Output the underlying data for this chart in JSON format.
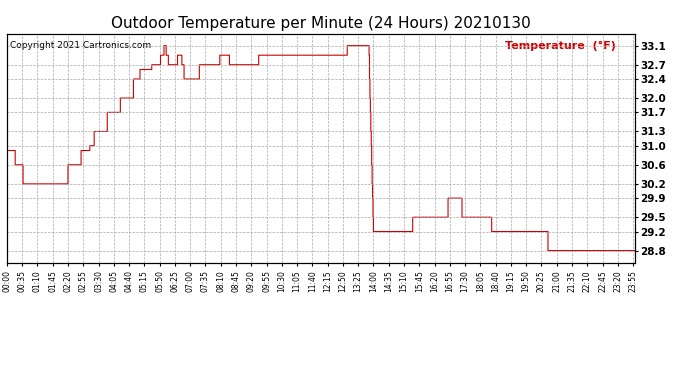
{
  "title": "Outdoor Temperature per Minute (24 Hours) 20210130",
  "copyright_text": "Copyright 2021 Cartronics.com",
  "legend_label": "Temperature  (°F)",
  "line_color": "#cc0000",
  "background_color": "#ffffff",
  "grid_color": "#aaaaaa",
  "title_fontsize": 11,
  "ylabel_right_ticks": [
    28.8,
    29.2,
    29.5,
    29.9,
    30.2,
    30.6,
    31.0,
    31.3,
    31.7,
    32.0,
    32.4,
    32.7,
    33.1
  ],
  "ylim": [
    28.55,
    33.35
  ],
  "x_tick_labels": [
    "00:00",
    "00:35",
    "01:10",
    "01:45",
    "02:20",
    "02:55",
    "03:30",
    "04:05",
    "04:40",
    "05:15",
    "05:50",
    "06:25",
    "07:00",
    "07:35",
    "08:10",
    "08:45",
    "09:20",
    "09:55",
    "10:30",
    "11:05",
    "11:40",
    "12:15",
    "12:50",
    "13:25",
    "14:00",
    "14:35",
    "15:10",
    "15:45",
    "16:20",
    "16:55",
    "17:30",
    "18:05",
    "18:40",
    "19:15",
    "19:50",
    "20:25",
    "21:00",
    "21:35",
    "22:10",
    "22:45",
    "23:20",
    "23:55"
  ],
  "num_minutes": 1440,
  "temperature_data": [
    30.9,
    30.9,
    30.9,
    30.9,
    30.9,
    30.9,
    30.9,
    30.9,
    30.9,
    30.9,
    30.9,
    30.9,
    30.9,
    30.9,
    30.9,
    30.9,
    30.9,
    30.9,
    30.9,
    30.6,
    30.6,
    30.6,
    30.6,
    30.6,
    30.6,
    30.6,
    30.6,
    30.6,
    30.6,
    30.6,
    30.6,
    30.6,
    30.6,
    30.6,
    30.6,
    30.6,
    30.6,
    30.2,
    30.2,
    30.2,
    30.2,
    30.2,
    30.2,
    30.2,
    30.2,
    30.2,
    30.2,
    30.2,
    30.2,
    30.2,
    30.2,
    30.2,
    30.2,
    30.2,
    30.2,
    30.2,
    30.2,
    30.2,
    30.2,
    30.2,
    30.2,
    30.2,
    30.2,
    30.2,
    30.2,
    30.2,
    30.2,
    30.2,
    30.2,
    30.2,
    30.2,
    30.2,
    30.2,
    30.2,
    30.2,
    30.2,
    30.2,
    30.2,
    30.2,
    30.2,
    30.2,
    30.2,
    30.2,
    30.2,
    30.2,
    30.2,
    30.2,
    30.2,
    30.2,
    30.2,
    30.2,
    30.2,
    30.2,
    30.2,
    30.2,
    30.2,
    30.2,
    30.2,
    30.2,
    30.2,
    30.2,
    30.2,
    30.2,
    30.2,
    30.2,
    30.2,
    30.2,
    30.2,
    30.2,
    30.2,
    30.2,
    30.2,
    30.2,
    30.2,
    30.2,
    30.2,
    30.2,
    30.2,
    30.2,
    30.2,
    30.2,
    30.2,
    30.2,
    30.2,
    30.2,
    30.2,
    30.2,
    30.2,
    30.2,
    30.2,
    30.2,
    30.2,
    30.2,
    30.2,
    30.2,
    30.2,
    30.2,
    30.2,
    30.2,
    30.2,
    30.6,
    30.6,
    30.6,
    30.6,
    30.6,
    30.6,
    30.6,
    30.6,
    30.6,
    30.6,
    30.6,
    30.6,
    30.6,
    30.6,
    30.6,
    30.6,
    30.6,
    30.6,
    30.6,
    30.6,
    30.6,
    30.6,
    30.6,
    30.6,
    30.6,
    30.6,
    30.6,
    30.6,
    30.6,
    30.6,
    30.9,
    30.9,
    30.9,
    30.9,
    30.9,
    30.9,
    30.9,
    30.9,
    30.9,
    30.9,
    30.9,
    30.9,
    30.9,
    30.9,
    30.9,
    30.9,
    30.9,
    30.9,
    30.9,
    30.9,
    31.0,
    31.0,
    31.0,
    31.0,
    31.0,
    31.0,
    31.0,
    31.0,
    31.0,
    31.0,
    31.3,
    31.3,
    31.3,
    31.3,
    31.3,
    31.3,
    31.3,
    31.3,
    31.3,
    31.3,
    31.3,
    31.3,
    31.3,
    31.3,
    31.3,
    31.3,
    31.3,
    31.3,
    31.3,
    31.3,
    31.3,
    31.3,
    31.3,
    31.3,
    31.3,
    31.3,
    31.3,
    31.3,
    31.3,
    31.3,
    31.7,
    31.7,
    31.7,
    31.7,
    31.7,
    31.7,
    31.7,
    31.7,
    31.7,
    31.7,
    31.7,
    31.7,
    31.7,
    31.7,
    31.7,
    31.7,
    31.7,
    31.7,
    31.7,
    31.7,
    31.7,
    31.7,
    31.7,
    31.7,
    31.7,
    31.7,
    31.7,
    31.7,
    31.7,
    31.7,
    32.0,
    32.0,
    32.0,
    32.0,
    32.0,
    32.0,
    32.0,
    32.0,
    32.0,
    32.0,
    32.0,
    32.0,
    32.0,
    32.0,
    32.0,
    32.0,
    32.0,
    32.0,
    32.0,
    32.0,
    32.0,
    32.0,
    32.0,
    32.0,
    32.0,
    32.0,
    32.0,
    32.0,
    32.0,
    32.0,
    32.4,
    32.4,
    32.4,
    32.4,
    32.4,
    32.4,
    32.4,
    32.4,
    32.4,
    32.4,
    32.4,
    32.4,
    32.4,
    32.4,
    32.4,
    32.6,
    32.6,
    32.6,
    32.6,
    32.6,
    32.6,
    32.6,
    32.6,
    32.6,
    32.6,
    32.6,
    32.6,
    32.6,
    32.6,
    32.6,
    32.6,
    32.6,
    32.6,
    32.6,
    32.6,
    32.6,
    32.6,
    32.6,
    32.6,
    32.6,
    32.6,
    32.6,
    32.7,
    32.7,
    32.7,
    32.7,
    32.7,
    32.7,
    32.7,
    32.7,
    32.7,
    32.7,
    32.7,
    32.7,
    32.7,
    32.7,
    32.7,
    32.7,
    32.7,
    32.7,
    32.7,
    32.7,
    32.9,
    32.9,
    32.9,
    32.9,
    32.9,
    32.9,
    32.9,
    32.9,
    33.1,
    33.1,
    33.1,
    33.1,
    33.1,
    32.9,
    32.9,
    32.9,
    32.9,
    32.9,
    32.7,
    32.7,
    32.7,
    32.7,
    32.7,
    32.7,
    32.7,
    32.7,
    32.7,
    32.7,
    32.7,
    32.7,
    32.7,
    32.7,
    32.7,
    32.7,
    32.7,
    32.7,
    32.7,
    32.7,
    32.7,
    32.9,
    32.9,
    32.9,
    32.9,
    32.9,
    32.9,
    32.9,
    32.9,
    32.9,
    32.9,
    32.7,
    32.7,
    32.7,
    32.7,
    32.7,
    32.4,
    32.4,
    32.4,
    32.4,
    32.4,
    32.4,
    32.4,
    32.4,
    32.4,
    32.4,
    32.4,
    32.4,
    32.4,
    32.4,
    32.4,
    32.4,
    32.4,
    32.4,
    32.4,
    32.4,
    32.4,
    32.4,
    32.4,
    32.4,
    32.4,
    32.4,
    32.4,
    32.4,
    32.4,
    32.4,
    32.4,
    32.4,
    32.4,
    32.4,
    32.4,
    32.7,
    32.7,
    32.7,
    32.7,
    32.7,
    32.7,
    32.7,
    32.7,
    32.7,
    32.7,
    32.7,
    32.7,
    32.7,
    32.7,
    32.7,
    32.7,
    32.7,
    32.7,
    32.7,
    32.7,
    32.7,
    32.7,
    32.7,
    32.7,
    32.7,
    32.7,
    32.7,
    32.7,
    32.7,
    32.7,
    32.7,
    32.7,
    32.7,
    32.7,
    32.7,
    32.7,
    32.7,
    32.7,
    32.7,
    32.7,
    32.7,
    32.7,
    32.7,
    32.7,
    32.7,
    32.7,
    32.7,
    32.9,
    32.9,
    32.9,
    32.9,
    32.9,
    32.9,
    32.9,
    32.9,
    32.9,
    32.9,
    32.9,
    32.9,
    32.9,
    32.9,
    32.9,
    32.9,
    32.9,
    32.9,
    32.9,
    32.9,
    32.9,
    32.9,
    32.7,
    32.7,
    32.7,
    32.7,
    32.7,
    32.7,
    32.7,
    32.7,
    32.7,
    32.7,
    32.7,
    32.7,
    32.7,
    32.7,
    32.7,
    32.7,
    32.7,
    32.7,
    32.7,
    32.7,
    32.7,
    32.7,
    32.7,
    32.7,
    32.7,
    32.7,
    32.7,
    32.7,
    32.7,
    32.7,
    32.7,
    32.7,
    32.7,
    32.7,
    32.7,
    32.7,
    32.7,
    32.7,
    32.7,
    32.7,
    32.7,
    32.7,
    32.7,
    32.7,
    32.7,
    32.7,
    32.7,
    32.7,
    32.7,
    32.7,
    32.7,
    32.7,
    32.7,
    32.7,
    32.7,
    32.7,
    32.7,
    32.7,
    32.7,
    32.7,
    32.7,
    32.7,
    32.7,
    32.7,
    32.7,
    32.7,
    32.7,
    32.9,
    32.9,
    32.9,
    32.9,
    32.9,
    32.9,
    32.9,
    32.9,
    32.9,
    32.9,
    32.9,
    32.9,
    32.9,
    32.9,
    32.9,
    32.9,
    32.9,
    32.9,
    32.9,
    32.9,
    32.9,
    32.9,
    32.9,
    32.9,
    32.9,
    32.9,
    32.9,
    32.9,
    32.9,
    32.9,
    32.9,
    32.9,
    32.9,
    32.9,
    32.9,
    32.9,
    32.9,
    32.9,
    32.9,
    32.9,
    32.9,
    32.9,
    32.9,
    32.9,
    32.9,
    32.9,
    32.9,
    32.9,
    32.9,
    32.9,
    32.9,
    32.9,
    32.9,
    32.9,
    32.9,
    32.9,
    32.9,
    32.9,
    32.9,
    32.9,
    32.9,
    32.9,
    32.9,
    32.9,
    32.9,
    32.9,
    32.9,
    32.9,
    32.9,
    32.9,
    32.9,
    32.9,
    32.9,
    32.9,
    32.9,
    32.9,
    32.9,
    32.9,
    32.9,
    32.9,
    32.9,
    32.9,
    32.9,
    32.9,
    32.9,
    32.9,
    32.9,
    32.9,
    32.9,
    32.9,
    32.9,
    32.9,
    32.9,
    32.9,
    32.9,
    32.9,
    32.9,
    32.9,
    32.9,
    32.9,
    32.9,
    32.9,
    32.9,
    32.9,
    32.9,
    32.9,
    32.9,
    32.9,
    32.9,
    32.9,
    32.9,
    32.9,
    32.9,
    32.9,
    32.9,
    32.9,
    32.9,
    32.9,
    32.9,
    32.9,
    32.9,
    32.9,
    32.9,
    32.9,
    32.9,
    32.9,
    32.9,
    32.9,
    32.9,
    32.9,
    32.9,
    32.9,
    32.9,
    32.9,
    32.9,
    32.9,
    32.9,
    32.9,
    32.9,
    32.9,
    32.9,
    32.9,
    32.9,
    32.9,
    32.9,
    32.9,
    32.9,
    32.9,
    32.9,
    32.9,
    32.9,
    32.9,
    32.9,
    32.9,
    32.9,
    32.9,
    32.9,
    32.9,
    32.9,
    32.9,
    32.9,
    32.9,
    32.9,
    32.9,
    32.9,
    32.9,
    32.9,
    32.9,
    32.9,
    32.9,
    32.9,
    32.9,
    32.9,
    32.9,
    32.9,
    32.9,
    32.9,
    32.9,
    32.9,
    32.9,
    32.9,
    32.9,
    32.9,
    32.9,
    32.9,
    32.9,
    32.9,
    32.9,
    32.9,
    32.9,
    32.9,
    32.9,
    32.9,
    32.9,
    32.9,
    32.9,
    32.9,
    32.9,
    32.9,
    32.9,
    32.9,
    32.9,
    32.9,
    33.1,
    33.1,
    33.1,
    33.1,
    33.1,
    33.1,
    33.1,
    33.1,
    33.1,
    33.1,
    33.1,
    33.1,
    33.1,
    33.1,
    33.1,
    33.1,
    33.1,
    33.1,
    33.1,
    33.1,
    33.1,
    33.1,
    33.1,
    33.1,
    33.1,
    33.1,
    33.1,
    33.1,
    33.1,
    33.1,
    33.1,
    33.1,
    33.1,
    33.1,
    33.1,
    33.1,
    33.1,
    33.1,
    33.1,
    33.1,
    33.1,
    33.1,
    33.1,
    33.1,
    33.1,
    33.1,
    33.1,
    33.1,
    33.1,
    33.1,
    32.9,
    32.4,
    32.0,
    31.7,
    31.3,
    31.0,
    30.6,
    30.2,
    29.9,
    29.5,
    29.2,
    29.2,
    29.2,
    29.2,
    29.2,
    29.2,
    29.2,
    29.2,
    29.2,
    29.2,
    29.2,
    29.2,
    29.2,
    29.2,
    29.2,
    29.2,
    29.2,
    29.2,
    29.2,
    29.2,
    29.2,
    29.2,
    29.2,
    29.2,
    29.2,
    29.2,
    29.2,
    29.2,
    29.2,
    29.2,
    29.2,
    29.2,
    29.2,
    29.2,
    29.2,
    29.2,
    29.2,
    29.2,
    29.2,
    29.2,
    29.2,
    29.2,
    29.2,
    29.2,
    29.2,
    29.2,
    29.2,
    29.2,
    29.2,
    29.2,
    29.2,
    29.2,
    29.2,
    29.2,
    29.2,
    29.2,
    29.2,
    29.2,
    29.2,
    29.2,
    29.2,
    29.2,
    29.2,
    29.2,
    29.2,
    29.2,
    29.2,
    29.2,
    29.2,
    29.2,
    29.2,
    29.2,
    29.2,
    29.2,
    29.2,
    29.2,
    29.2,
    29.2,
    29.2,
    29.2,
    29.2,
    29.2,
    29.2,
    29.2,
    29.2,
    29.2,
    29.2,
    29.2,
    29.2,
    29.2,
    29.5,
    29.5,
    29.5,
    29.5,
    29.5,
    29.5,
    29.5,
    29.5,
    29.5,
    29.5,
    29.5,
    29.5,
    29.5,
    29.5,
    29.5,
    29.5,
    29.5,
    29.5,
    29.5,
    29.5,
    29.5,
    29.5,
    29.5,
    29.5,
    29.5,
    29.5,
    29.5,
    29.5,
    29.5,
    29.5,
    29.5,
    29.5,
    29.5,
    29.5,
    29.5,
    29.5,
    29.5,
    29.5,
    29.5,
    29.5,
    29.5,
    29.5,
    29.5,
    29.5,
    29.5,
    29.5,
    29.5,
    29.5,
    29.5,
    29.5,
    29.5,
    29.5,
    29.5,
    29.5,
    29.5,
    29.5,
    29.5,
    29.5,
    29.5,
    29.5,
    29.5,
    29.5,
    29.5,
    29.5,
    29.5,
    29.5,
    29.5,
    29.5,
    29.5,
    29.5,
    29.5,
    29.5,
    29.5,
    29.5,
    29.5,
    29.5,
    29.5,
    29.5,
    29.5,
    29.5,
    29.5,
    29.9,
    29.9,
    29.9,
    29.9,
    29.9,
    29.9,
    29.9,
    29.9,
    29.9,
    29.9,
    29.9,
    29.9,
    29.9,
    29.9,
    29.9,
    29.9,
    29.9,
    29.9,
    29.9,
    29.9,
    29.9,
    29.9,
    29.9,
    29.9,
    29.9,
    29.9,
    29.9,
    29.9,
    29.9,
    29.9,
    29.9,
    29.9,
    29.5,
    29.5,
    29.5,
    29.5,
    29.5,
    29.5,
    29.5,
    29.5,
    29.5,
    29.5,
    29.5,
    29.5,
    29.5,
    29.5,
    29.5,
    29.5,
    29.5,
    29.5,
    29.5,
    29.5,
    29.5,
    29.5,
    29.5,
    29.5,
    29.5,
    29.5,
    29.5,
    29.5,
    29.5,
    29.5,
    29.5,
    29.5,
    29.5,
    29.5,
    29.5,
    29.5,
    29.5,
    29.5,
    29.5,
    29.5,
    29.5,
    29.5,
    29.5,
    29.5,
    29.5,
    29.5,
    29.5,
    29.5,
    29.5,
    29.5,
    29.5,
    29.5,
    29.5,
    29.5,
    29.5,
    29.5,
    29.5,
    29.5,
    29.5,
    29.5,
    29.5,
    29.5,
    29.5,
    29.5,
    29.5,
    29.5,
    29.5,
    29.5,
    29.2,
    29.2,
    29.2,
    29.2,
    29.2,
    29.2,
    29.2,
    29.2,
    29.2,
    29.2,
    29.2,
    29.2,
    29.2,
    29.2,
    29.2,
    29.2,
    29.2,
    29.2,
    29.2,
    29.2,
    29.2,
    29.2,
    29.2,
    29.2,
    29.2,
    29.2,
    29.2,
    29.2,
    29.2,
    29.2,
    29.2,
    29.2,
    29.2,
    29.2,
    29.2,
    29.2,
    29.2,
    29.2,
    29.2,
    29.2,
    29.2,
    29.2,
    29.2,
    29.2,
    29.2,
    29.2,
    29.2,
    29.2,
    29.2,
    29.2,
    29.2,
    29.2,
    29.2,
    29.2,
    29.2,
    29.2,
    29.2,
    29.2,
    29.2,
    29.2,
    29.2,
    29.2,
    29.2,
    29.2,
    29.2,
    29.2,
    29.2,
    29.2,
    29.2,
    29.2,
    29.2,
    29.2,
    29.2,
    29.2,
    29.2,
    29.2,
    29.2,
    29.2,
    29.2,
    29.2,
    29.2,
    29.2,
    29.2,
    29.2,
    29.2,
    29.2,
    29.2,
    29.2,
    29.2,
    29.2,
    29.2,
    29.2,
    29.2,
    29.2,
    29.2,
    29.2,
    29.2,
    29.2,
    29.2,
    29.2,
    29.2,
    29.2,
    29.2,
    29.2,
    29.2,
    29.2,
    29.2,
    29.2,
    29.2,
    29.2,
    29.2,
    29.2,
    29.2,
    29.2,
    29.2,
    29.2,
    29.2,
    29.2,
    29.2,
    29.2,
    29.2,
    29.2,
    29.2,
    29.2,
    29.2,
    29.2,
    29.2,
    29.2,
    29.2,
    28.8,
    28.8,
    28.8,
    28.8,
    28.8,
    28.8,
    28.8,
    28.8,
    28.8,
    28.8,
    28.8,
    28.8,
    28.8,
    28.8,
    28.8,
    28.8,
    28.8,
    28.8,
    28.8,
    28.8
  ]
}
